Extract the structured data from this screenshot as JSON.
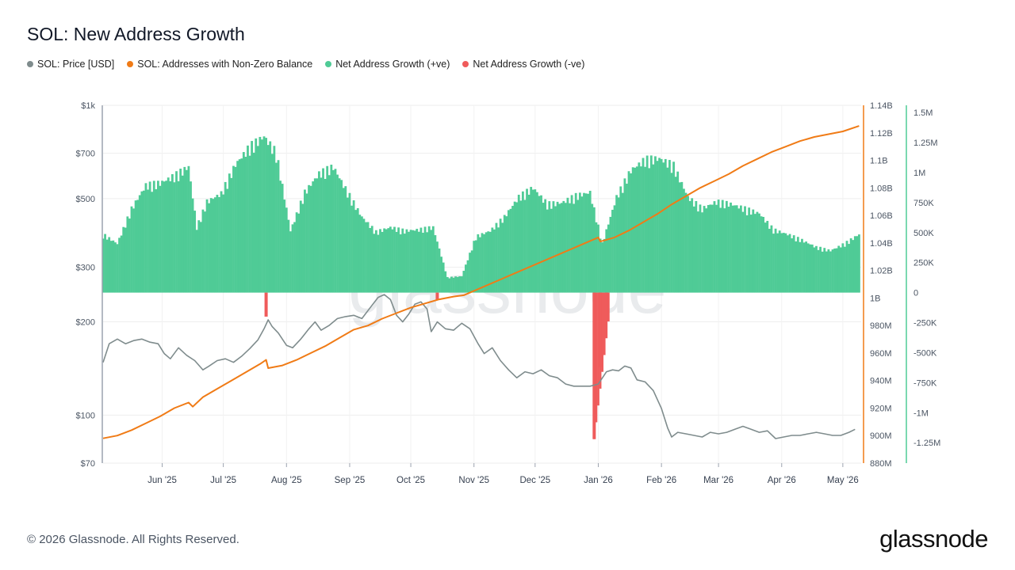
{
  "title": "SOL: New Address Growth",
  "legend": [
    {
      "label": "SOL: Price [USD]",
      "color": "#7f8c8d"
    },
    {
      "label": "SOL: Addresses with Non-Zero Balance",
      "color": "#f07b16"
    },
    {
      "label": "Net Address Growth (+ve)",
      "color": "#4fcb96"
    },
    {
      "label": "Net Address Growth (-ve)",
      "color": "#ef5b5b"
    }
  ],
  "footer": "© 2026 Glassnode. All Rights Reserved.",
  "brand": "glassnode",
  "watermark": "glassnode",
  "chart_data": {
    "type": "line",
    "x_range": [
      "2025-05-03",
      "2026-05-10"
    ],
    "x_tick_labels": [
      "Jun '25",
      "Jul '25",
      "Aug '25",
      "Sep '25",
      "Oct '25",
      "Nov '25",
      "Dec '25",
      "Jan '26",
      "Feb '26",
      "Mar '26",
      "Apr '26",
      "May '26"
    ],
    "y_axes": {
      "price": {
        "scale": "log",
        "range": [
          70,
          1000
        ],
        "tick_labels": [
          "$1k",
          "$700",
          "$500",
          "$300",
          "$200",
          "$100",
          "$70"
        ],
        "tick_values": [
          1000,
          700,
          500,
          300,
          200,
          100,
          70
        ]
      },
      "addresses": {
        "scale": "linear",
        "range": [
          880000000,
          1140000000
        ],
        "tick_labels": [
          "1.14B",
          "1.12B",
          "1.1B",
          "1.08B",
          "1.06B",
          "1.04B",
          "1.02B",
          "1B",
          "980M",
          "960M",
          "940M",
          "920M",
          "900M",
          "880M"
        ],
        "tick_values": [
          1140000000,
          1120000000,
          1100000000,
          1080000000,
          1060000000,
          1040000000,
          1020000000,
          1000000000,
          980000000,
          960000000,
          940000000,
          920000000,
          900000000,
          880000000
        ]
      },
      "net_growth": {
        "scale": "linear",
        "range": [
          -1420000,
          1560000
        ],
        "tick_labels": [
          "1.5M",
          "1.25M",
          "1M",
          "750K",
          "500K",
          "250K",
          "0",
          "-250K",
          "-500K",
          "-750K",
          "-1M",
          "-1.25M"
        ],
        "tick_values": [
          1500000,
          1250000,
          1000000,
          750000,
          500000,
          250000,
          0,
          -250000,
          -500000,
          -750000,
          -1000000,
          -1250000
        ]
      }
    },
    "series": [
      {
        "name": "SOL: Price [USD]",
        "axis": "price",
        "points": [
          [
            "2025-05-03",
            148
          ],
          [
            "2025-05-06",
            170
          ],
          [
            "2025-05-10",
            176
          ],
          [
            "2025-05-14",
            170
          ],
          [
            "2025-05-18",
            174
          ],
          [
            "2025-05-22",
            176
          ],
          [
            "2025-05-26",
            172
          ],
          [
            "2025-05-30",
            170
          ],
          [
            "2025-06-02",
            158
          ],
          [
            "2025-06-05",
            152
          ],
          [
            "2025-06-09",
            165
          ],
          [
            "2025-06-13",
            156
          ],
          [
            "2025-06-17",
            150
          ],
          [
            "2025-06-21",
            140
          ],
          [
            "2025-06-24",
            144
          ],
          [
            "2025-06-28",
            150
          ],
          [
            "2025-07-02",
            152
          ],
          [
            "2025-07-06",
            148
          ],
          [
            "2025-07-10",
            155
          ],
          [
            "2025-07-14",
            164
          ],
          [
            "2025-07-18",
            175
          ],
          [
            "2025-07-21",
            190
          ],
          [
            "2025-07-23",
            203
          ],
          [
            "2025-07-25",
            193
          ],
          [
            "2025-07-28",
            184
          ],
          [
            "2025-08-01",
            168
          ],
          [
            "2025-08-04",
            165
          ],
          [
            "2025-08-08",
            176
          ],
          [
            "2025-08-12",
            190
          ],
          [
            "2025-08-15",
            200
          ],
          [
            "2025-08-18",
            188
          ],
          [
            "2025-08-22",
            195
          ],
          [
            "2025-08-26",
            205
          ],
          [
            "2025-08-30",
            208
          ],
          [
            "2025-09-03",
            210
          ],
          [
            "2025-09-07",
            205
          ],
          [
            "2025-09-11",
            222
          ],
          [
            "2025-09-15",
            240
          ],
          [
            "2025-09-18",
            245
          ],
          [
            "2025-09-21",
            236
          ],
          [
            "2025-09-24",
            210
          ],
          [
            "2025-09-27",
            200
          ],
          [
            "2025-09-30",
            212
          ],
          [
            "2025-10-03",
            228
          ],
          [
            "2025-10-06",
            232
          ],
          [
            "2025-10-09",
            220
          ],
          [
            "2025-10-11",
            186
          ],
          [
            "2025-10-14",
            200
          ],
          [
            "2025-10-18",
            190
          ],
          [
            "2025-10-22",
            188
          ],
          [
            "2025-10-26",
            198
          ],
          [
            "2025-10-30",
            190
          ],
          [
            "2025-11-03",
            170
          ],
          [
            "2025-11-06",
            158
          ],
          [
            "2025-11-10",
            165
          ],
          [
            "2025-11-14",
            150
          ],
          [
            "2025-11-18",
            140
          ],
          [
            "2025-11-22",
            132
          ],
          [
            "2025-11-26",
            138
          ],
          [
            "2025-11-30",
            136
          ],
          [
            "2025-12-04",
            140
          ],
          [
            "2025-12-08",
            134
          ],
          [
            "2025-12-12",
            132
          ],
          [
            "2025-12-16",
            126
          ],
          [
            "2025-12-20",
            124
          ],
          [
            "2025-12-24",
            124
          ],
          [
            "2025-12-28",
            124
          ],
          [
            "2026-01-01",
            126
          ],
          [
            "2026-01-05",
            138
          ],
          [
            "2026-01-08",
            140
          ],
          [
            "2026-01-11",
            139
          ],
          [
            "2026-01-14",
            144
          ],
          [
            "2026-01-17",
            142
          ],
          [
            "2026-01-20",
            130
          ],
          [
            "2026-01-24",
            128
          ],
          [
            "2026-01-28",
            120
          ],
          [
            "2026-02-01",
            105
          ],
          [
            "2026-02-04",
            91
          ],
          [
            "2026-02-06",
            85
          ],
          [
            "2026-02-09",
            88
          ],
          [
            "2026-02-13",
            87
          ],
          [
            "2026-02-17",
            86
          ],
          [
            "2026-02-21",
            85
          ],
          [
            "2026-02-25",
            88
          ],
          [
            "2026-03-01",
            87
          ],
          [
            "2026-03-05",
            88
          ],
          [
            "2026-03-09",
            90
          ],
          [
            "2026-03-13",
            92
          ],
          [
            "2026-03-17",
            90
          ],
          [
            "2026-03-21",
            88
          ],
          [
            "2026-03-25",
            89
          ],
          [
            "2026-03-29",
            84
          ],
          [
            "2026-04-02",
            85
          ],
          [
            "2026-04-06",
            86
          ],
          [
            "2026-04-10",
            86
          ],
          [
            "2026-04-14",
            87
          ],
          [
            "2026-04-18",
            88
          ],
          [
            "2026-04-22",
            87
          ],
          [
            "2026-04-26",
            86
          ],
          [
            "2026-04-30",
            86
          ],
          [
            "2026-05-04",
            88
          ],
          [
            "2026-05-07",
            90
          ]
        ]
      },
      {
        "name": "SOL: Addresses with Non-Zero Balance",
        "axis": "addresses",
        "points": [
          [
            "2025-05-03",
            898000000
          ],
          [
            "2025-05-10",
            900000000
          ],
          [
            "2025-05-17",
            904000000
          ],
          [
            "2025-05-24",
            909000000
          ],
          [
            "2025-05-31",
            914000000
          ],
          [
            "2025-06-07",
            920000000
          ],
          [
            "2025-06-14",
            924000000
          ],
          [
            "2025-06-16",
            921000000
          ],
          [
            "2025-06-21",
            928000000
          ],
          [
            "2025-06-28",
            934000000
          ],
          [
            "2025-07-05",
            940000000
          ],
          [
            "2025-07-12",
            946000000
          ],
          [
            "2025-07-19",
            952000000
          ],
          [
            "2025-07-22",
            955000000
          ],
          [
            "2025-07-23",
            949000000
          ],
          [
            "2025-07-30",
            951000000
          ],
          [
            "2025-08-06",
            955000000
          ],
          [
            "2025-08-13",
            960000000
          ],
          [
            "2025-08-20",
            965000000
          ],
          [
            "2025-08-27",
            971000000
          ],
          [
            "2025-09-03",
            977000000
          ],
          [
            "2025-09-10",
            980000000
          ],
          [
            "2025-09-17",
            985000000
          ],
          [
            "2025-09-24",
            989000000
          ],
          [
            "2025-10-01",
            993000000
          ],
          [
            "2025-10-08",
            996000000
          ],
          [
            "2025-10-15",
            999000000
          ],
          [
            "2025-10-22",
            1001000000
          ],
          [
            "2025-10-27",
            1002000000
          ],
          [
            "2026-01-01",
            1044000000
          ],
          [
            "2026-01-02",
            1041000000
          ],
          [
            "2026-01-09",
            1044000000
          ],
          [
            "2026-01-16",
            1049000000
          ],
          [
            "2026-01-23",
            1055000000
          ],
          [
            "2026-01-30",
            1061000000
          ],
          [
            "2026-02-06",
            1068000000
          ],
          [
            "2026-02-13",
            1074000000
          ],
          [
            "2026-02-20",
            1080000000
          ],
          [
            "2026-02-27",
            1085000000
          ],
          [
            "2026-03-06",
            1090000000
          ],
          [
            "2026-03-13",
            1096000000
          ],
          [
            "2026-03-20",
            1101000000
          ],
          [
            "2026-03-27",
            1106000000
          ],
          [
            "2026-04-03",
            1110000000
          ],
          [
            "2026-04-10",
            1114000000
          ],
          [
            "2026-04-17",
            1117000000
          ],
          [
            "2026-04-24",
            1119000000
          ],
          [
            "2026-05-01",
            1121000000
          ],
          [
            "2026-05-09",
            1125000000
          ]
        ]
      },
      {
        "name": "Net Address Growth (+ve)",
        "axis": "net_growth",
        "points": [
          [
            "2025-05-03",
            500000
          ],
          [
            "2025-05-10",
            420000
          ],
          [
            "2025-05-17",
            720000
          ],
          [
            "2025-05-24",
            920000
          ],
          [
            "2025-05-31",
            940000
          ],
          [
            "2025-06-07",
            1000000
          ],
          [
            "2025-06-14",
            1080000
          ],
          [
            "2025-06-18",
            560000
          ],
          [
            "2025-06-23",
            780000
          ],
          [
            "2025-06-30",
            850000
          ],
          [
            "2025-07-07",
            1100000
          ],
          [
            "2025-07-14",
            1250000
          ],
          [
            "2025-07-21",
            1340000
          ],
          [
            "2025-07-27",
            1200000
          ],
          [
            "2025-08-03",
            530000
          ],
          [
            "2025-08-10",
            860000
          ],
          [
            "2025-08-17",
            1020000
          ],
          [
            "2025-08-24",
            1080000
          ],
          [
            "2025-08-31",
            860000
          ],
          [
            "2025-09-07",
            650000
          ],
          [
            "2025-09-14",
            520000
          ],
          [
            "2025-09-21",
            560000
          ],
          [
            "2025-09-28",
            530000
          ],
          [
            "2025-10-05",
            540000
          ],
          [
            "2025-10-12",
            560000
          ],
          [
            "2025-10-19",
            130000
          ],
          [
            "2025-10-26",
            140000
          ],
          [
            "2025-11-02",
            480000
          ],
          [
            "2025-11-09",
            530000
          ],
          [
            "2025-11-16",
            650000
          ],
          [
            "2025-11-23",
            820000
          ],
          [
            "2025-11-30",
            900000
          ],
          [
            "2025-12-07",
            760000
          ],
          [
            "2025-12-14",
            770000
          ],
          [
            "2025-12-21",
            830000
          ],
          [
            "2025-12-28",
            860000
          ],
          [
            "2026-01-03",
            420000
          ],
          [
            "2026-01-10",
            820000
          ],
          [
            "2026-01-17",
            1050000
          ],
          [
            "2026-01-24",
            1140000
          ],
          [
            "2026-01-31",
            1150000
          ],
          [
            "2026-02-07",
            1090000
          ],
          [
            "2026-02-14",
            820000
          ],
          [
            "2026-02-21",
            720000
          ],
          [
            "2026-02-28",
            780000
          ],
          [
            "2026-03-07",
            760000
          ],
          [
            "2026-03-14",
            720000
          ],
          [
            "2026-03-21",
            680000
          ],
          [
            "2026-03-28",
            540000
          ],
          [
            "2026-04-04",
            500000
          ],
          [
            "2026-04-11",
            450000
          ],
          [
            "2026-04-18",
            390000
          ],
          [
            "2026-04-25",
            360000
          ],
          [
            "2026-05-02",
            420000
          ],
          [
            "2026-05-09",
            500000
          ]
        ]
      },
      {
        "name": "Net Address Growth (-ve)",
        "axis": "net_growth",
        "points": [
          [
            "2025-07-22",
            -200000
          ],
          [
            "2025-10-14",
            -60000
          ],
          [
            "2025-12-30",
            -1220000
          ],
          [
            "2026-01-02",
            -620000
          ],
          [
            "2026-01-05",
            -160000
          ]
        ]
      }
    ],
    "legend_position": "top-left",
    "grid": true
  }
}
